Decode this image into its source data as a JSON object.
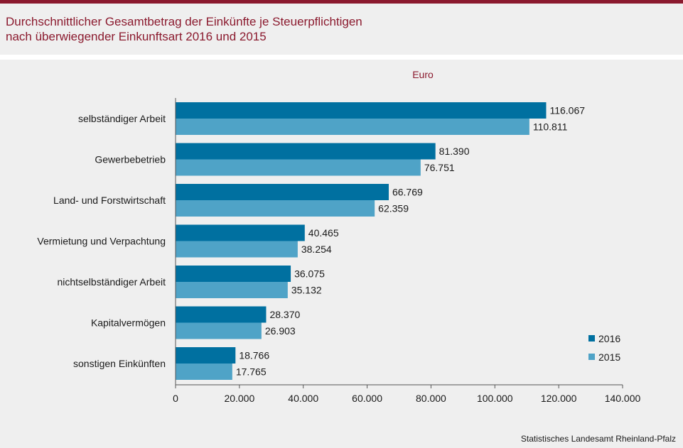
{
  "title_lines": [
    "Durchschnittlicher Gesamtbetrag der Einkünfte je Steuerpflichtigen",
    "nach überwiegender Einkunftsart 2016 und 2015"
  ],
  "source": "Statistisches Landesamt Rheinland-Pfalz",
  "colors": {
    "s2016": "#0070a0",
    "s2015": "#4fa3c7",
    "title": "#8b1a2e"
  },
  "chart_data": {
    "type": "bar",
    "orientation": "horizontal",
    "unit_label": "Euro",
    "categories": [
      "selbständiger Arbeit",
      "Gewerbebetrieb",
      "Land- und Forstwirtschaft",
      "Vermietung und Verpachtung",
      "nichtselbständiger Arbeit",
      "Kapitalvermögen",
      "sonstigen Einkünften"
    ],
    "series": [
      {
        "name": "2016",
        "values": [
          116067,
          81390,
          66769,
          40465,
          36075,
          28370,
          18766
        ],
        "labels": [
          "116.067",
          "81.390",
          "66.769",
          "40.465",
          "36.075",
          "28.370",
          "18.766"
        ]
      },
      {
        "name": "2015",
        "values": [
          110811,
          76751,
          62359,
          38254,
          35132,
          26903,
          17765
        ],
        "labels": [
          "110.811",
          "76.751",
          "62.359",
          "38.254",
          "35.132",
          "26.903",
          "17.765"
        ]
      }
    ],
    "xlim": [
      0,
      140000
    ],
    "ticks": [
      0,
      20000,
      40000,
      60000,
      80000,
      100000,
      120000,
      140000
    ],
    "tick_labels": [
      "0",
      "20.000",
      "40.000",
      "60.000",
      "80.000",
      "100.000",
      "120.000",
      "140.000"
    ],
    "grid": false,
    "legend": "bottom-right"
  }
}
